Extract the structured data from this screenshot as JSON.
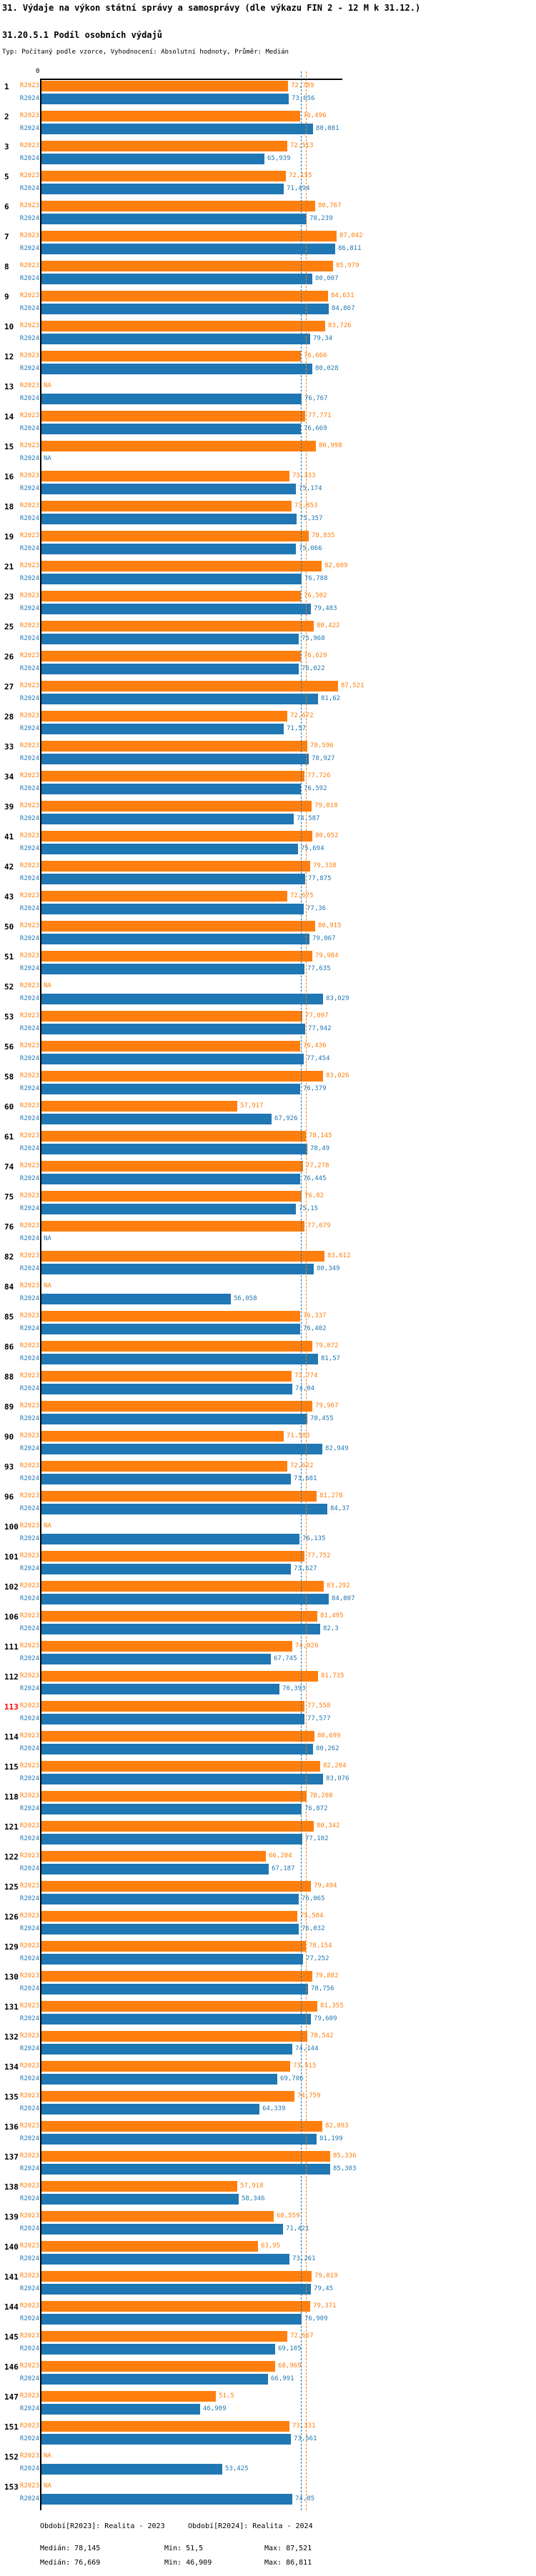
{
  "title": "31. Výdaje na výkon státní správy a samosprávy (dle výkazu FIN 2 - 12 M k 31.12.)",
  "subtitle": "31.20.5.1 Podíl osobních výdajů",
  "type_line": "Typ: Počítaný podle vzorce, Vyhodnocení: Absolutní hodnoty, Průměr: Medián",
  "colors": {
    "r2023": "#ff7f0e",
    "r2024": "#1f77b4",
    "highlight_id": "#ff0000",
    "axis": "#000000"
  },
  "axis": {
    "zero_label": "0"
  },
  "chart_data": {
    "type": "bar",
    "orientation": "horizontal",
    "title": "31.20.5.1 Podíl osobních výdajů",
    "series_labels": [
      "R2023",
      "R2024"
    ],
    "na_label": "NA",
    "xlim": [
      0,
      88.6
    ],
    "grid": false,
    "legend_position": "bottom",
    "medians": {
      "r2023": 78.145,
      "r2024": 76.669
    },
    "stats": {
      "r2023": {
        "median": 78.145,
        "min": 51.5,
        "max": 87.521
      },
      "r2024": {
        "median": 76.669,
        "min": 46.909,
        "max": 86.811
      }
    },
    "highlighted_ids": [
      "113"
    ],
    "groups": [
      {
        "id": "1",
        "r2023": 72.789,
        "r2024": 73.056
      },
      {
        "id": "2",
        "r2023": 76.496,
        "r2024": 80.081
      },
      {
        "id": "3",
        "r2023": 72.513,
        "r2024": 65.939
      },
      {
        "id": "5",
        "r2023": 72.155,
        "r2024": 71.494
      },
      {
        "id": "6",
        "r2023": 80.767,
        "r2024": 78.239
      },
      {
        "id": "7",
        "r2023": 87.042,
        "r2024": 86.811
      },
      {
        "id": "8",
        "r2023": 85.979,
        "r2024": 80.007
      },
      {
        "id": "9",
        "r2023": 84.631,
        "r2024": 84.867
      },
      {
        "id": "10",
        "r2023": 83.726,
        "r2024": 79.34
      },
      {
        "id": "12",
        "r2023": 76.666,
        "r2024": 80.028
      },
      {
        "id": "13",
        "r2023": null,
        "r2024": 76.767
      },
      {
        "id": "14",
        "r2023": 77.771,
        "r2024": 76.669
      },
      {
        "id": "15",
        "r2023": 80.998,
        "r2024": null
      },
      {
        "id": "16",
        "r2023": 73.333,
        "r2024": 75.174
      },
      {
        "id": "18",
        "r2023": 73.853,
        "r2024": 75.357
      },
      {
        "id": "19",
        "r2023": 78.835,
        "r2024": 75.066
      },
      {
        "id": "21",
        "r2023": 82.609,
        "r2024": 76.788
      },
      {
        "id": "23",
        "r2023": 76.502,
        "r2024": 79.483
      },
      {
        "id": "25",
        "r2023": 80.422,
        "r2024": 75.968
      },
      {
        "id": "26",
        "r2023": 76.629,
        "r2024": 76.022
      },
      {
        "id": "27",
        "r2023": 87.521,
        "r2024": 81.62
      },
      {
        "id": "28",
        "r2023": 72.672,
        "r2024": 71.57
      },
      {
        "id": "33",
        "r2023": 78.596,
        "r2024": 78.927
      },
      {
        "id": "34",
        "r2023": 77.726,
        "r2024": 76.592
      },
      {
        "id": "39",
        "r2023": 79.818,
        "r2024": 74.587
      },
      {
        "id": "41",
        "r2023": 80.052,
        "r2024": 75.694
      },
      {
        "id": "42",
        "r2023": 79.338,
        "r2024": 77.875
      },
      {
        "id": "43",
        "r2023": 72.675,
        "r2024": 77.36
      },
      {
        "id": "50",
        "r2023": 80.915,
        "r2024": 79.067
      },
      {
        "id": "51",
        "r2023": 79.984,
        "r2024": 77.635
      },
      {
        "id": "52",
        "r2023": null,
        "r2024": 83.029
      },
      {
        "id": "53",
        "r2023": 77.097,
        "r2024": 77.942
      },
      {
        "id": "56",
        "r2023": 76.436,
        "r2024": 77.454
      },
      {
        "id": "58",
        "r2023": 83.026,
        "r2024": 76.379
      },
      {
        "id": "60",
        "r2023": 57.917,
        "r2024": 67.926
      },
      {
        "id": "61",
        "r2023": 78.145,
        "r2024": 78.49
      },
      {
        "id": "74",
        "r2023": 77.278,
        "r2024": 76.445
      },
      {
        "id": "75",
        "r2023": 76.82,
        "r2024": 75.15
      },
      {
        "id": "76",
        "r2023": 77.679,
        "r2024": null
      },
      {
        "id": "82",
        "r2023": 83.612,
        "r2024": 80.349
      },
      {
        "id": "84",
        "r2023": null,
        "r2024": 56.058
      },
      {
        "id": "85",
        "r2023": 76.337,
        "r2024": 76.402
      },
      {
        "id": "86",
        "r2023": 79.872,
        "r2024": 81.57
      },
      {
        "id": "88",
        "r2023": 73.774,
        "r2024": 74.04
      },
      {
        "id": "89",
        "r2023": 79.967,
        "r2024": 78.455
      },
      {
        "id": "90",
        "r2023": 71.583,
        "r2024": 82.949
      },
      {
        "id": "93",
        "r2023": 72.622,
        "r2024": 73.681
      },
      {
        "id": "96",
        "r2023": 81.278,
        "r2024": 84.37
      },
      {
        "id": "100",
        "r2023": null,
        "r2024": 76.135
      },
      {
        "id": "101",
        "r2023": 77.752,
        "r2024": 73.627
      },
      {
        "id": "102",
        "r2023": 83.292,
        "r2024": 84.807
      },
      {
        "id": "106",
        "r2023": 81.495,
        "r2024": 82.3
      },
      {
        "id": "111",
        "r2023": 74.026,
        "r2024": 67.745
      },
      {
        "id": "112",
        "r2023": 81.735,
        "r2024": 70.393
      },
      {
        "id": "113",
        "r2023": 77.558,
        "r2024": 77.577
      },
      {
        "id": "114",
        "r2023": 80.699,
        "r2024": 80.262
      },
      {
        "id": "115",
        "r2023": 82.204,
        "r2024": 83.076
      },
      {
        "id": "118",
        "r2023": 78.208,
        "r2024": 76.872
      },
      {
        "id": "121",
        "r2023": 80.342,
        "r2024": 77.102
      },
      {
        "id": "122",
        "r2023": 66.204,
        "r2024": 67.187
      },
      {
        "id": "125",
        "r2023": 79.494,
        "r2024": 76.065
      },
      {
        "id": "126",
        "r2023": 75.504,
        "r2024": 76.032
      },
      {
        "id": "129",
        "r2023": 78.154,
        "r2024": 77.252
      },
      {
        "id": "130",
        "r2023": 79.882,
        "r2024": 78.756
      },
      {
        "id": "131",
        "r2023": 81.355,
        "r2024": 79.609
      },
      {
        "id": "132",
        "r2023": 78.542,
        "r2024": 74.144
      },
      {
        "id": "134",
        "r2023": 73.515,
        "r2024": 69.706
      },
      {
        "id": "135",
        "r2023": 74.759,
        "r2024": 64.339
      },
      {
        "id": "136",
        "r2023": 82.893,
        "r2024": 81.199
      },
      {
        "id": "137",
        "r2023": 85.336,
        "r2024": 85.303
      },
      {
        "id": "138",
        "r2023": 57.918,
        "r2024": 58.346
      },
      {
        "id": "139",
        "r2023": 68.559,
        "r2024": 71.421
      },
      {
        "id": "140",
        "r2023": 63.95,
        "r2024": 73.261
      },
      {
        "id": "141",
        "r2023": 79.819,
        "r2024": 79.45
      },
      {
        "id": "144",
        "r2023": 79.371,
        "r2024": 76.909
      },
      {
        "id": "145",
        "r2023": 72.667,
        "r2024": 69.105
      },
      {
        "id": "146",
        "r2023": 68.969,
        "r2024": 66.991
      },
      {
        "id": "147",
        "r2023": 51.5,
        "r2024": 46.909
      },
      {
        "id": "151",
        "r2023": 73.331,
        "r2024": 73.561
      },
      {
        "id": "152",
        "r2023": null,
        "r2024": 53.425
      },
      {
        "id": "153",
        "r2023": null,
        "r2024": 74.05
      }
    ]
  },
  "footer": {
    "period_r2023": "Období[R2023]: Realita - 2023",
    "period_r2024": "Období[R2024]: Realita - 2024",
    "stats_r2023": {
      "median": "Medián: 78,145",
      "min": "Min: 51,5",
      "max": "Max: 87,521"
    },
    "stats_r2024": {
      "median": "Medián: 76,669",
      "min": "Min: 46,909",
      "max": "Max: 86,811"
    }
  }
}
